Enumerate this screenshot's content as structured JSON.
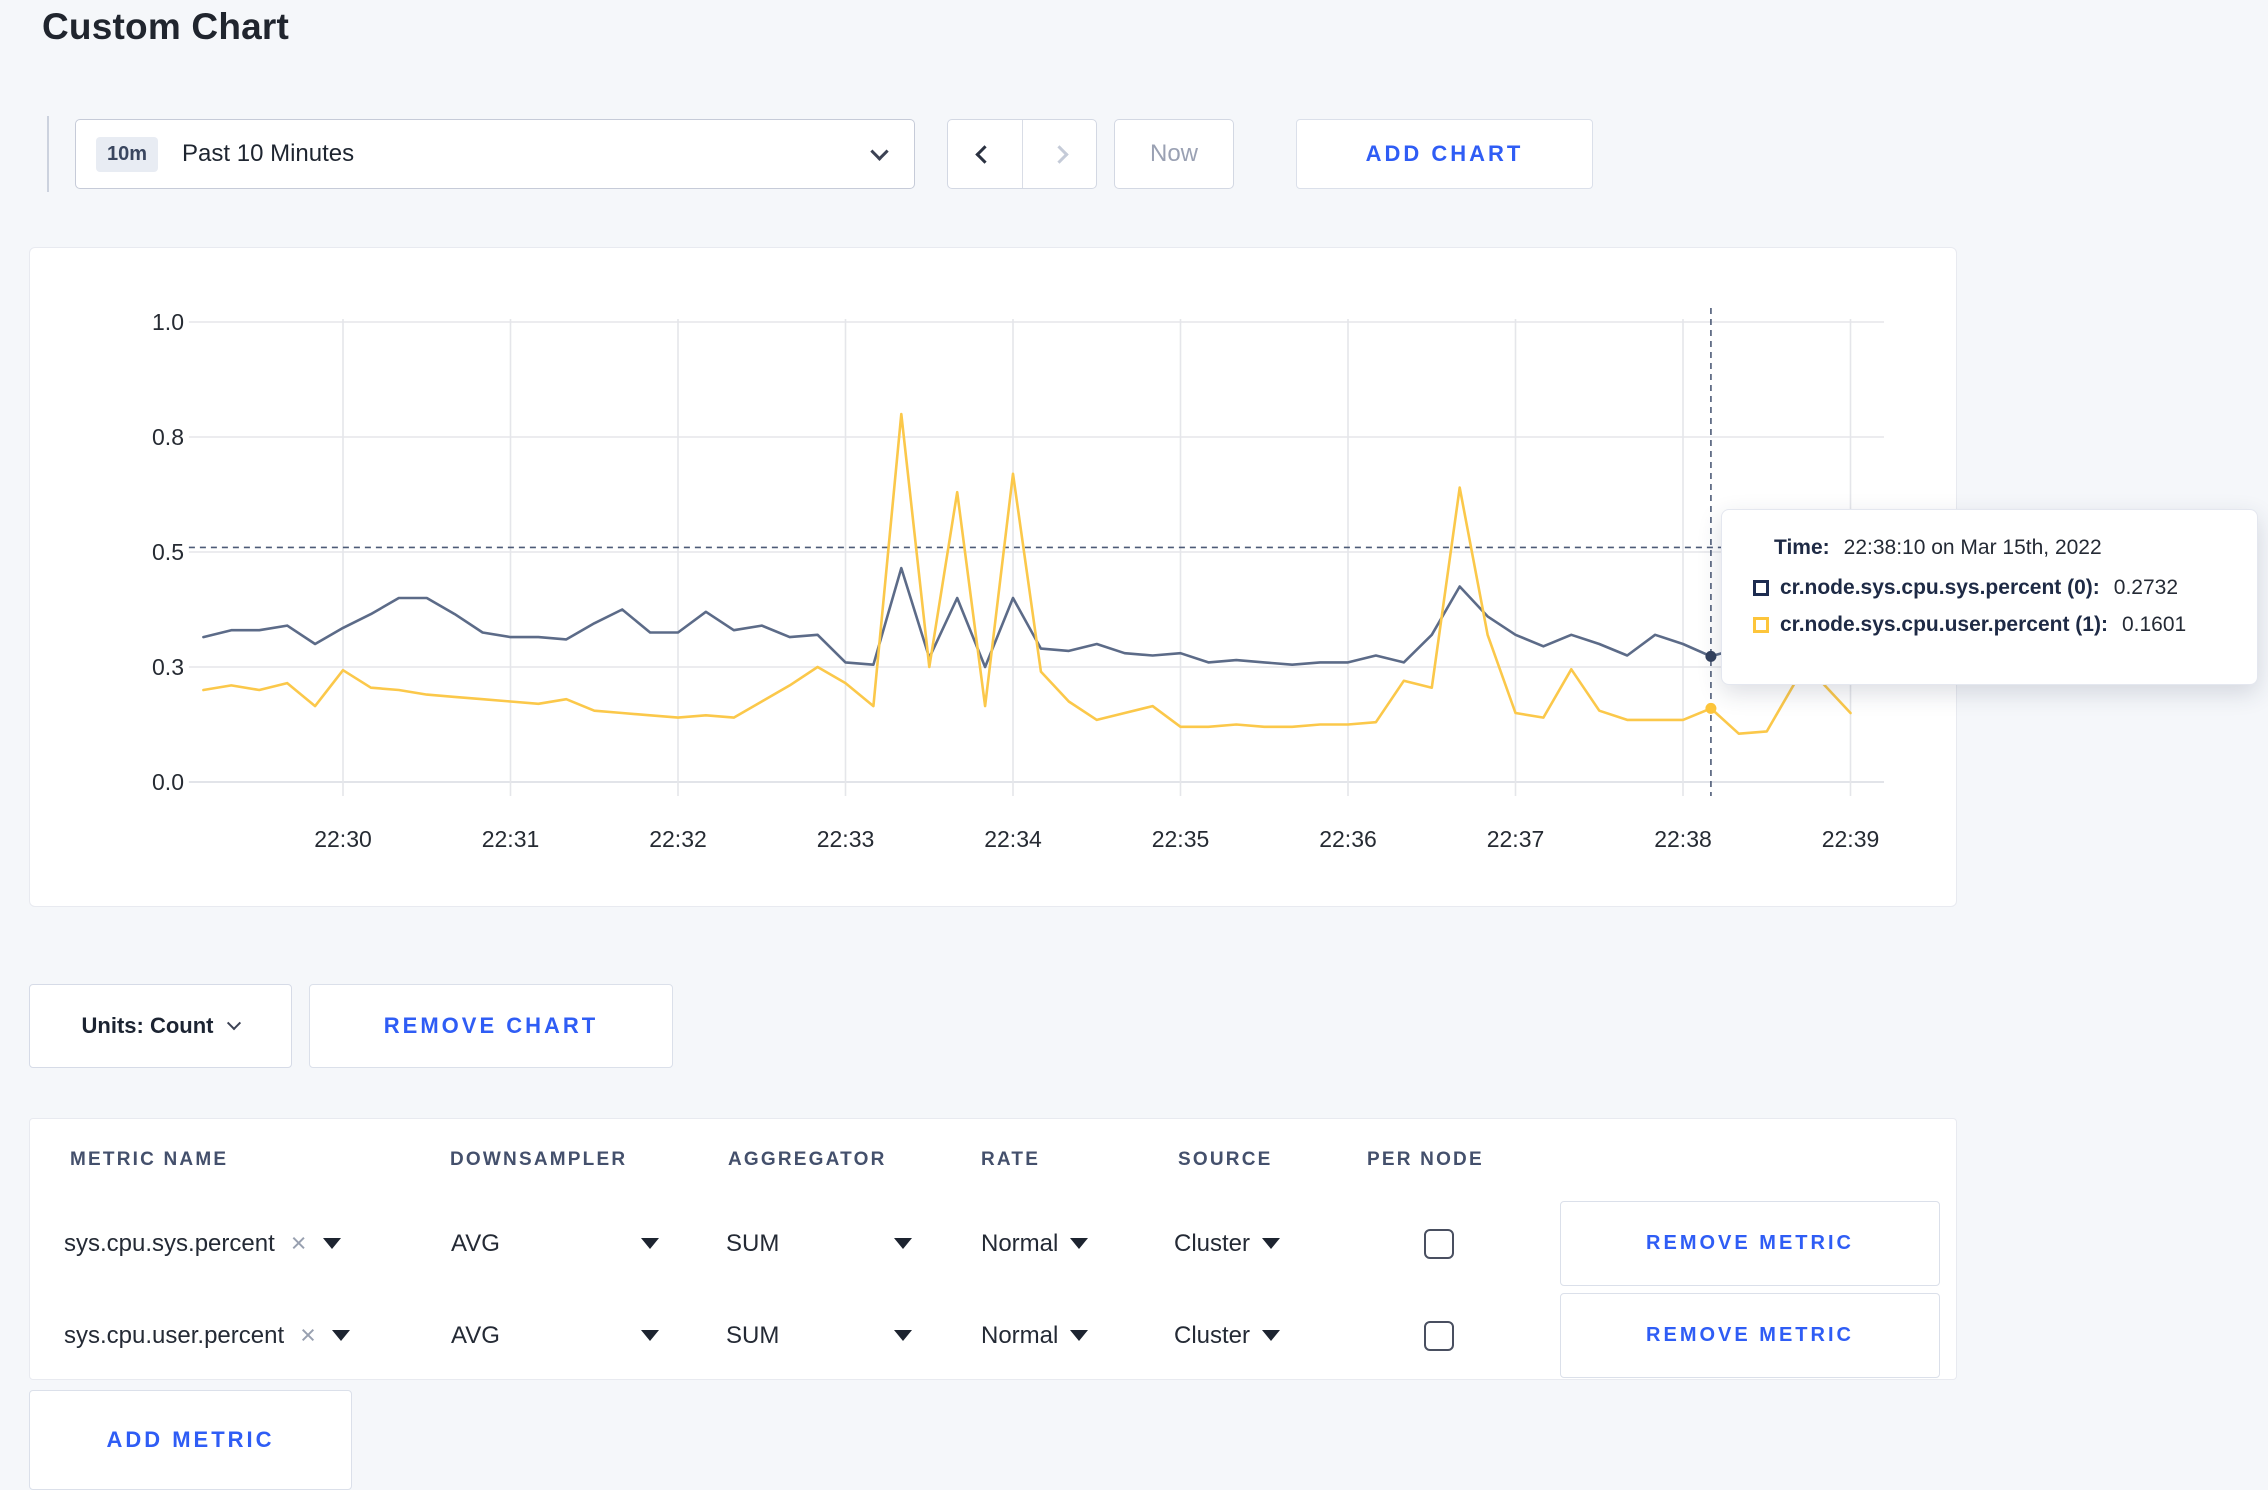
{
  "page": {
    "title": "Custom Chart",
    "background": "#f5f7fa"
  },
  "toolbar": {
    "time_range": {
      "badge": "10m",
      "label": "Past 10 Minutes"
    },
    "now_label": "Now",
    "add_chart_label": "ADD CHART"
  },
  "chart_data": {
    "type": "line",
    "title": "",
    "xlabel": "",
    "ylabel": "",
    "grid": true,
    "legend_position": "tooltip",
    "x_axis": {
      "tick_minutes": [
        0,
        1,
        2,
        3,
        4,
        5,
        6,
        7,
        8,
        9
      ],
      "tick_labels": [
        "22:30",
        "22:31",
        "22:32",
        "22:33",
        "22:34",
        "22:35",
        "22:36",
        "22:37",
        "22:38",
        "22:39"
      ],
      "domain_minutes": [
        -0.92,
        9.2
      ]
    },
    "y_axis": {
      "domain": [
        0,
        1
      ],
      "ticks": [
        {
          "value": 0,
          "label": "0.0"
        },
        {
          "value": 0.25,
          "label": "0.3"
        },
        {
          "value": 0.5,
          "label": "0.5"
        },
        {
          "value": 0.75,
          "label": "0.8"
        },
        {
          "value": 1,
          "label": "1.0"
        }
      ]
    },
    "sample_interval_seconds": 10,
    "start_offset_minutes": -0.8333,
    "series": [
      {
        "name": "cr.node.sys.cpu.sys.percent",
        "node": "0",
        "color": "#5c6b88",
        "dot_color": "#33415e",
        "values": [
          0.315,
          0.33,
          0.33,
          0.34,
          0.3,
          0.335,
          0.365,
          0.4,
          0.4,
          0.365,
          0.325,
          0.315,
          0.315,
          0.31,
          0.345,
          0.375,
          0.325,
          0.325,
          0.37,
          0.33,
          0.34,
          0.315,
          0.32,
          0.26,
          0.255,
          0.465,
          0.27,
          0.4,
          0.25,
          0.4,
          0.29,
          0.285,
          0.3,
          0.28,
          0.275,
          0.28,
          0.26,
          0.265,
          0.26,
          0.255,
          0.26,
          0.26,
          0.275,
          0.26,
          0.32,
          0.425,
          0.36,
          0.32,
          0.295,
          0.32,
          0.3,
          0.275,
          0.32,
          0.3,
          0.2732,
          0.29,
          0.28,
          0.31,
          0.29,
          0.295
        ]
      },
      {
        "name": "cr.node.sys.cpu.user.percent",
        "node": "1",
        "color": "#fbc84a",
        "dot_color": "#fdc53b",
        "values": [
          0.2,
          0.21,
          0.2,
          0.215,
          0.165,
          0.243,
          0.205,
          0.2,
          0.19,
          0.185,
          0.18,
          0.175,
          0.17,
          0.18,
          0.155,
          0.15,
          0.145,
          0.14,
          0.145,
          0.14,
          0.175,
          0.21,
          0.25,
          0.215,
          0.165,
          0.8,
          0.25,
          0.63,
          0.165,
          0.67,
          0.24,
          0.175,
          0.135,
          0.15,
          0.165,
          0.12,
          0.12,
          0.125,
          0.12,
          0.12,
          0.125,
          0.125,
          0.13,
          0.22,
          0.205,
          0.64,
          0.32,
          0.15,
          0.14,
          0.245,
          0.155,
          0.135,
          0.135,
          0.135,
          0.1601,
          0.105,
          0.11,
          0.215,
          0.215,
          0.15
        ]
      }
    ],
    "crosshair": {
      "time_minutes": 8.1667,
      "hline_value": 0.51,
      "highlight": [
        {
          "series": 0,
          "value": 0.2732
        },
        {
          "series": 1,
          "value": 0.1601
        }
      ]
    }
  },
  "tooltip": {
    "time_label": "Time:",
    "time_value": "22:38:10 on Mar 15th, 2022",
    "rows": [
      {
        "name": "cr.node.sys.cpu.sys.percent (0):",
        "value": "0.2732",
        "color": "#1d2c50"
      },
      {
        "name": "cr.node.sys.cpu.user.percent (1):",
        "value": "0.1601",
        "color": "#fdc53b"
      }
    ]
  },
  "chart_controls": {
    "units_label": "Units: Count",
    "remove_chart_label": "REMOVE CHART"
  },
  "metrics_table": {
    "headers": [
      "METRIC NAME",
      "DOWNSAMPLER",
      "AGGREGATOR",
      "RATE",
      "SOURCE",
      "PER NODE"
    ],
    "rows": [
      {
        "metric": "sys.cpu.sys.percent",
        "downsampler": "AVG",
        "aggregator": "SUM",
        "rate": "Normal",
        "source": "Cluster",
        "per_node_checked": false,
        "remove_label": "REMOVE METRIC"
      },
      {
        "metric": "sys.cpu.user.percent",
        "downsampler": "AVG",
        "aggregator": "SUM",
        "rate": "Normal",
        "source": "Cluster",
        "per_node_checked": false,
        "remove_label": "REMOVE METRIC"
      }
    ],
    "add_metric_label": "ADD METRIC"
  },
  "colors": {
    "accent_blue": "#2f5df5",
    "series_blue": "#5c6b88",
    "series_yellow": "#fbc84a",
    "page_bg": "#f5f7fa"
  }
}
